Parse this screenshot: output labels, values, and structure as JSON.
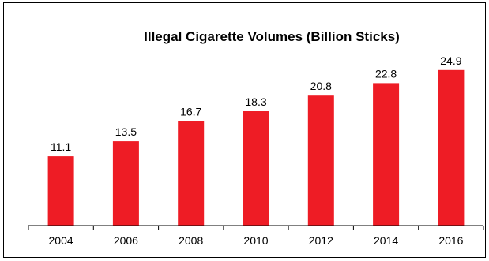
{
  "chart_data": {
    "type": "bar",
    "title": "Illegal Cigarette Volumes (Billion Sticks)",
    "xlabel": "",
    "ylabel": "",
    "categories": [
      "2004",
      "2006",
      "2008",
      "2010",
      "2012",
      "2014",
      "2016"
    ],
    "values": [
      11.1,
      13.5,
      16.7,
      18.3,
      20.8,
      22.8,
      24.9
    ],
    "ylim": [
      0,
      25.5
    ],
    "grid": false,
    "legend": "none",
    "colors": {
      "bar": "#ee1c25",
      "axis": "#000000"
    }
  }
}
